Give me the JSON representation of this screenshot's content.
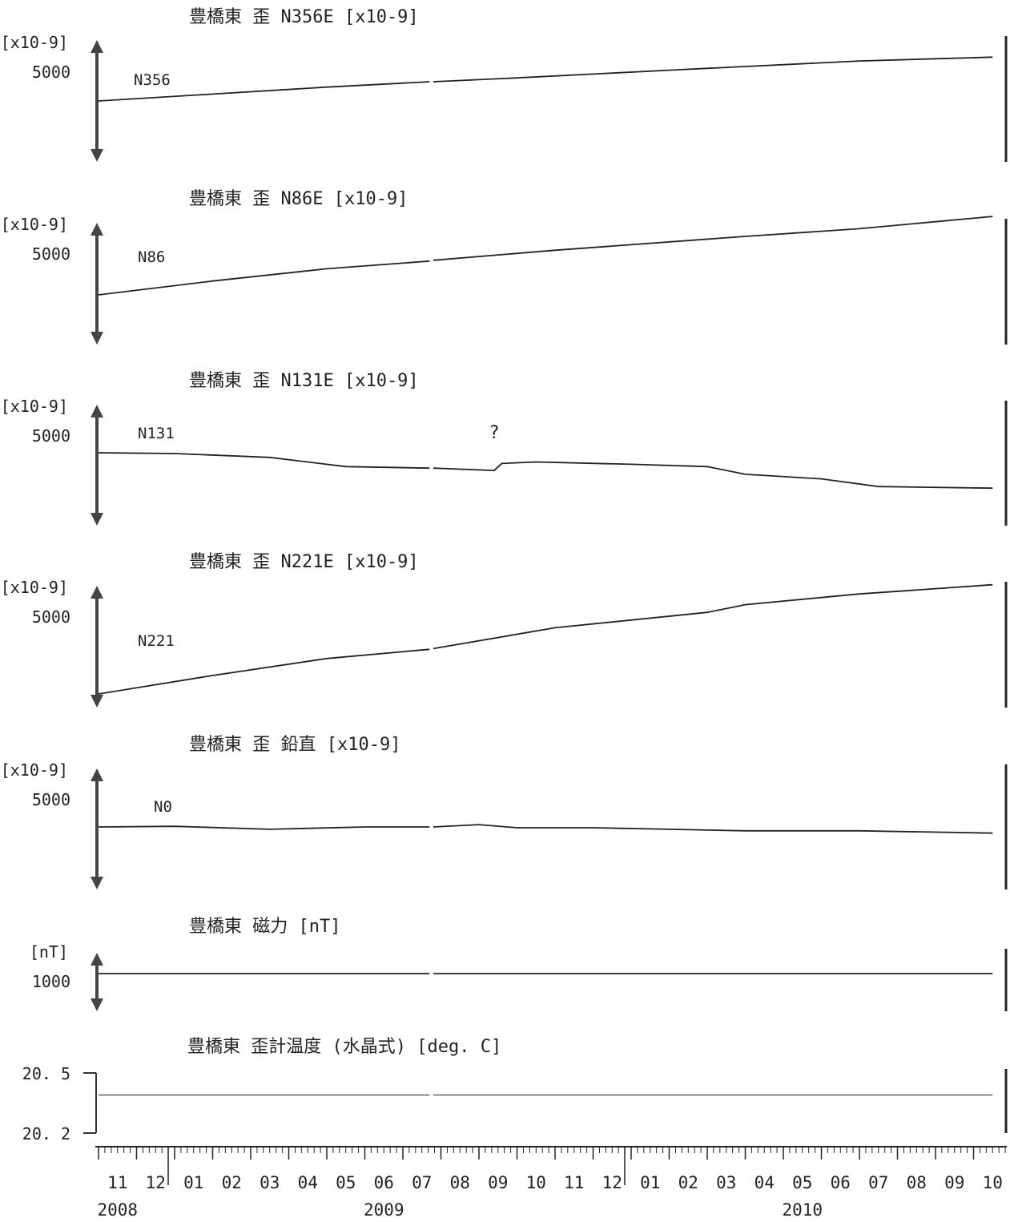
{
  "chart_data": [
    {
      "type": "line",
      "title": "豊橋東 歪 N356E [x10-9]",
      "unit_label": "[x10-9]",
      "scale_label": "5000",
      "scale_value": 5000,
      "series": [
        {
          "name": "N356",
          "segments": [
            [
              [
                0,
                0
              ],
              [
                3,
                450
              ],
              [
                6,
                900
              ],
              [
                8.7,
                1250
              ]
            ],
            [
              [
                8.8,
                1250
              ],
              [
                11,
                1500
              ],
              [
                15,
                2000
              ],
              [
                20,
                2600
              ],
              [
                23.5,
                2850
              ]
            ]
          ]
        }
      ]
    },
    {
      "type": "line",
      "title": "豊橋東 歪 N86E [x10-9]",
      "unit_label": "[x10-9]",
      "scale_label": "5000",
      "scale_value": 5000,
      "series": [
        {
          "name": "N86",
          "segments": [
            [
              [
                0,
                0
              ],
              [
                3,
                900
              ],
              [
                6,
                1700
              ],
              [
                8.7,
                2200
              ]
            ],
            [
              [
                8.8,
                2250
              ],
              [
                12,
                2900
              ],
              [
                17,
                3800
              ],
              [
                20,
                4300
              ],
              [
                23.5,
                5100
              ]
            ]
          ]
        }
      ]
    },
    {
      "type": "line",
      "title": "豊橋東 歪 N131E [x10-9]",
      "unit_label": "[x10-9]",
      "scale_label": "5000",
      "scale_value": 5000,
      "annotations": [
        {
          "text": "?",
          "x": 10.4,
          "y": 300
        }
      ],
      "series": [
        {
          "name": "N131",
          "segments": [
            [
              [
                0,
                0
              ],
              [
                2,
                -50
              ],
              [
                4.5,
                -300
              ],
              [
                6.5,
                -900
              ],
              [
                8.7,
                -1000
              ]
            ],
            [
              [
                8.8,
                -1000
              ],
              [
                10.4,
                -1150
              ],
              [
                10.6,
                -700
              ],
              [
                11.5,
                -600
              ],
              [
                14,
                -750
              ],
              [
                16,
                -900
              ],
              [
                17,
                -1400
              ],
              [
                19,
                -1700
              ],
              [
                20.5,
                -2200
              ],
              [
                23.5,
                -2300
              ]
            ]
          ]
        }
      ]
    },
    {
      "type": "line",
      "title": "豊橋東 歪 N221E [x10-9]",
      "unit_label": "[x10-9]",
      "scale_label": "5000",
      "scale_value": 5000,
      "series": [
        {
          "name": "N221",
          "segments": [
            [
              [
                0,
                0
              ],
              [
                3,
                1200
              ],
              [
                6,
                2300
              ],
              [
                8.7,
                2900
              ]
            ],
            [
              [
                8.8,
                2950
              ],
              [
                12,
                4300
              ],
              [
                16,
                5300
              ],
              [
                17,
                5800
              ],
              [
                20,
                6500
              ],
              [
                23.5,
                7100
              ]
            ]
          ]
        }
      ]
    },
    {
      "type": "line",
      "title": "豊橋東 歪 鉛直 [x10-9]",
      "unit_label": "[x10-9]",
      "scale_label": "5000",
      "scale_value": 5000,
      "series": [
        {
          "name": "N0",
          "segments": [
            [
              [
                0,
                0
              ],
              [
                2,
                40
              ],
              [
                4.5,
                -150
              ],
              [
                7,
                0
              ],
              [
                8.7,
                0
              ]
            ],
            [
              [
                8.8,
                0
              ],
              [
                10,
                150
              ],
              [
                11,
                -50
              ],
              [
                13,
                -50
              ],
              [
                15,
                -150
              ],
              [
                17,
                -250
              ],
              [
                20,
                -250
              ],
              [
                23.5,
                -400
              ]
            ]
          ]
        }
      ]
    },
    {
      "type": "line",
      "title": "豊橋東 磁力 [nT]",
      "unit_label": "[nT]",
      "scale_label": "1000",
      "scale_value": 1000,
      "series": [
        {
          "name": "",
          "segments": [
            [
              [
                0,
                0
              ],
              [
                4,
                0
              ],
              [
                8.7,
                0
              ]
            ],
            [
              [
                8.8,
                0
              ],
              [
                16,
                0
              ],
              [
                23.5,
                0
              ]
            ]
          ]
        }
      ]
    },
    {
      "type": "line",
      "title": "豊橋東 歪計温度 (水晶式) [deg. C]",
      "yticks": [
        "20. 5",
        "20. 2"
      ],
      "ylim": [
        20.2,
        20.5
      ],
      "series": [
        {
          "name": "",
          "segments": [
            [
              [
                0,
                20.39
              ],
              [
                8.7,
                20.39
              ]
            ],
            [
              [
                8.8,
                20.39
              ],
              [
                23.5,
                20.39
              ]
            ]
          ]
        }
      ]
    }
  ],
  "xaxis": {
    "months": [
      "11",
      "12",
      "01",
      "02",
      "03",
      "04",
      "05",
      "06",
      "07",
      "08",
      "09",
      "10",
      "11",
      "12",
      "01",
      "02",
      "03",
      "04",
      "05",
      "06",
      "07",
      "08",
      "09",
      "10"
    ],
    "years": [
      {
        "label": "2008",
        "month_index": 0.5
      },
      {
        "label": "2009",
        "month_index": 7.5
      },
      {
        "label": "2010",
        "month_index": 18.5
      }
    ]
  },
  "colors": {
    "line": "#222222",
    "thin_line": "#444444"
  }
}
